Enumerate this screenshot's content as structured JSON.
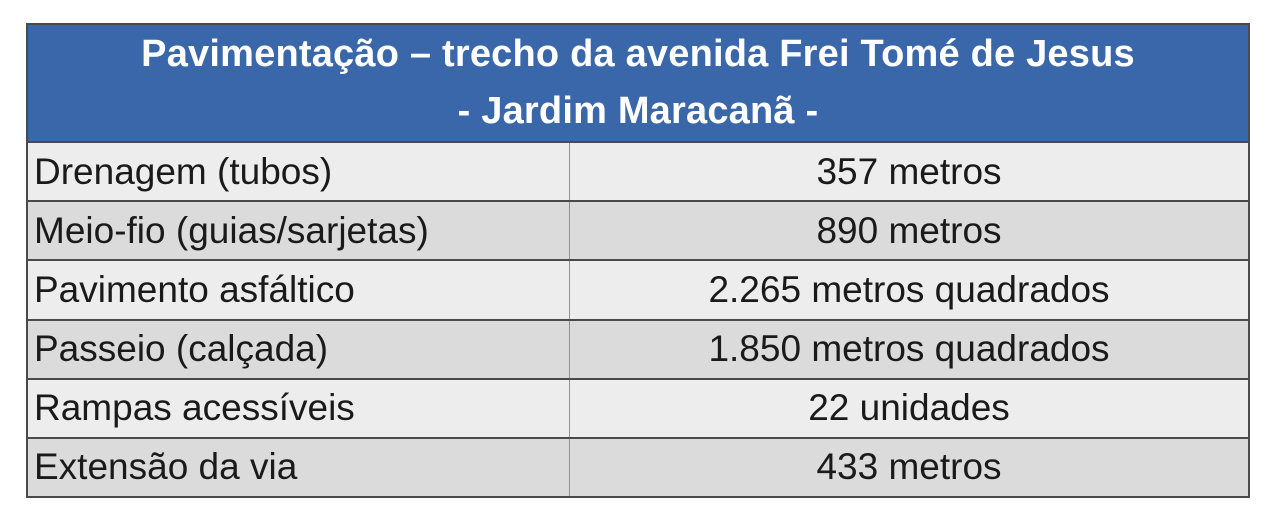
{
  "table": {
    "title_line1": "Pavimentação – trecho da avenida Frei Tomé de Jesus",
    "title_line2": "- Jardim Maracanã -",
    "rows": [
      {
        "label": "Drenagem (tubos)",
        "value": "357 metros"
      },
      {
        "label": "Meio-fio (guias/sarjetas)",
        "value": "890 metros"
      },
      {
        "label": "Pavimento asfáltico",
        "value": "2.265 metros quadrados"
      },
      {
        "label": "Passeio (calçada)",
        "value": "1.850 metros quadrados"
      },
      {
        "label": "Rampas acessíveis",
        "value": "22 unidades"
      },
      {
        "label": "Extensão da via",
        "value": "433 metros"
      }
    ],
    "colors": {
      "header_bg": "#3a67a9",
      "header_text": "#ffffff",
      "row_light": "#ededed",
      "row_dark": "#dbdbdb",
      "border": "#4a4a4a",
      "divider": "#909090"
    }
  }
}
